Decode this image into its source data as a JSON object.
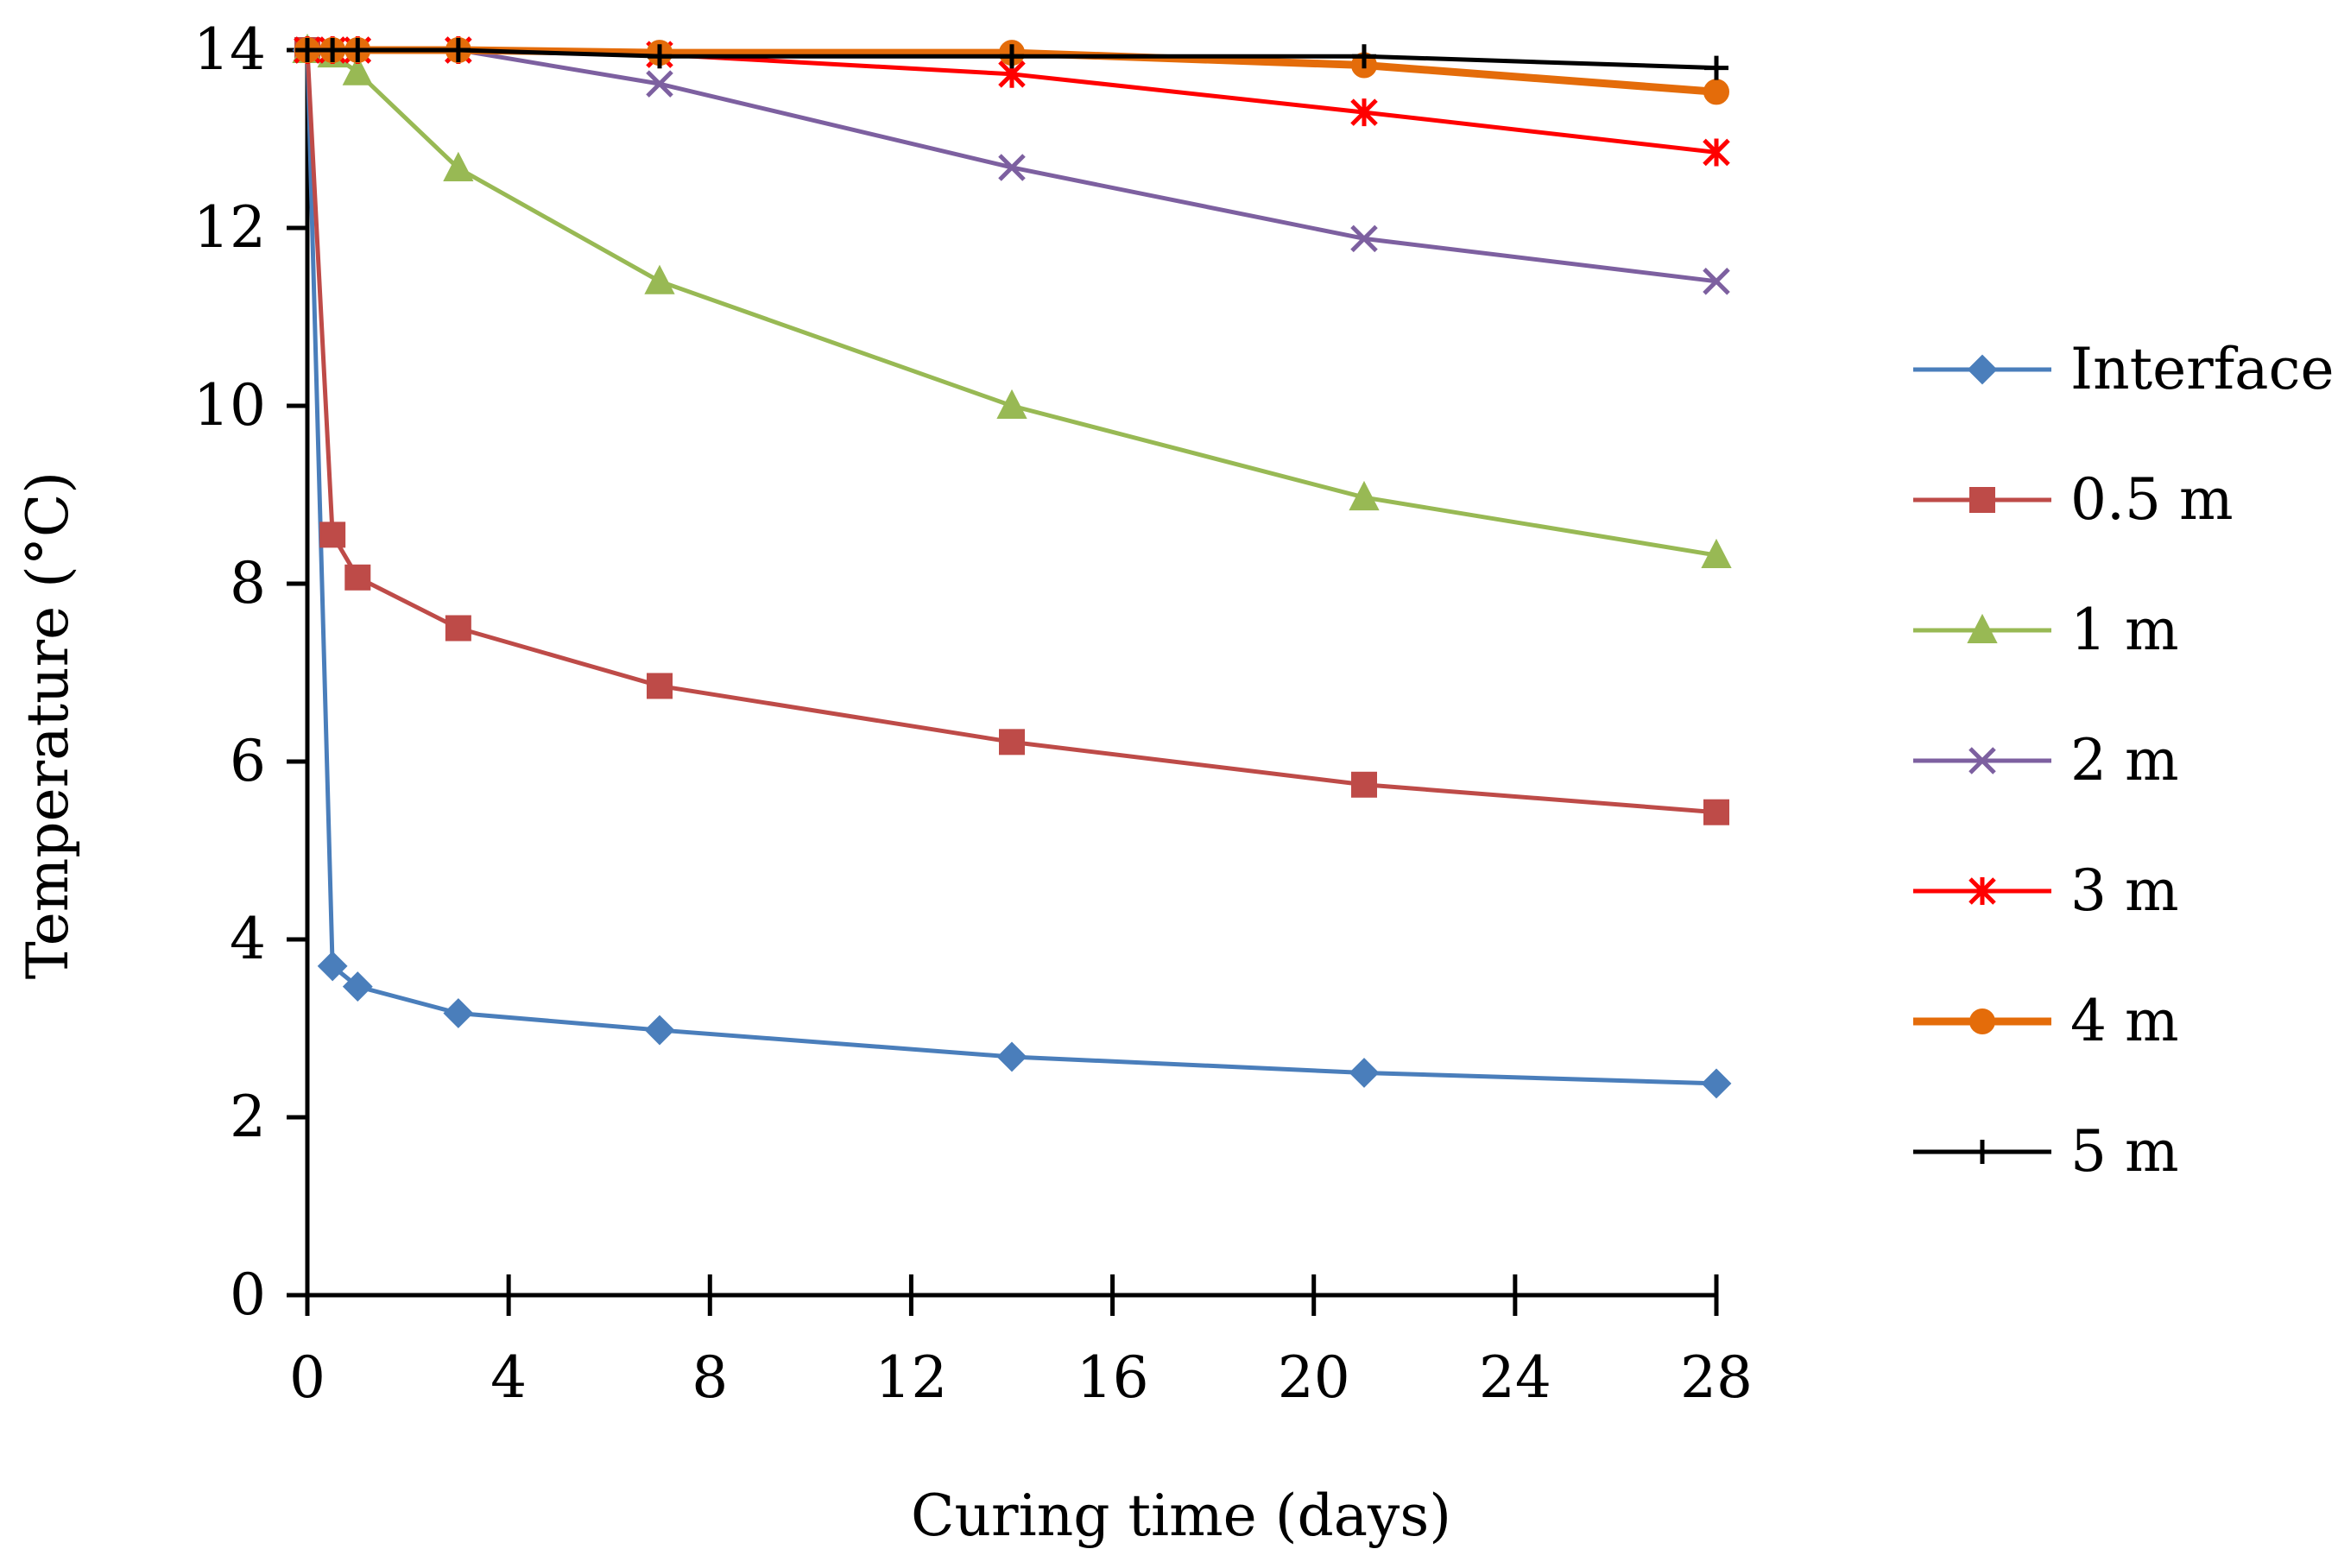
{
  "chart_data": {
    "type": "line",
    "title": "",
    "xlabel": "Curing time (days)",
    "ylabel": "Temperature (°C)",
    "xlim": [
      0,
      28
    ],
    "ylim": [
      0,
      14
    ],
    "x_ticks": [
      0,
      4,
      8,
      12,
      16,
      20,
      24,
      28
    ],
    "y_ticks": [
      0,
      2,
      4,
      6,
      8,
      10,
      12,
      14
    ],
    "x_tick_labels": [
      "0",
      "4",
      "8",
      "12",
      "16",
      "20",
      "24",
      "28"
    ],
    "y_tick_labels": [
      "0",
      "2",
      "4",
      "6",
      "8",
      "10",
      "12",
      "14"
    ],
    "grid": false,
    "legend_position": "right",
    "series": [
      {
        "name": "Interface",
        "color": "#4a7ebb",
        "marker": "diamond",
        "points": [
          [
            0,
            14
          ],
          [
            0.5,
            3.7
          ],
          [
            1,
            3.47
          ],
          [
            3,
            3.17
          ],
          [
            7,
            2.98
          ],
          [
            14,
            2.68
          ],
          [
            21,
            2.5
          ],
          [
            28,
            2.38
          ]
        ]
      },
      {
        "name": "0.5 m",
        "color": "#be4b48",
        "marker": "square",
        "points": [
          [
            0,
            14
          ],
          [
            0.5,
            8.55
          ],
          [
            1,
            8.07
          ],
          [
            3,
            7.5
          ],
          [
            7,
            6.85
          ],
          [
            14,
            6.22
          ],
          [
            21,
            5.74
          ],
          [
            28,
            5.43
          ]
        ]
      },
      {
        "name": "1 m",
        "color": "#98b954",
        "marker": "triangle",
        "points": [
          [
            0,
            14
          ],
          [
            0.5,
            13.95
          ],
          [
            1,
            13.75
          ],
          [
            3,
            12.67
          ],
          [
            7,
            11.4
          ],
          [
            14,
            10.0
          ],
          [
            21,
            8.97
          ],
          [
            28,
            8.32
          ]
        ]
      },
      {
        "name": "2 m",
        "color": "#7d60a0",
        "marker": "x",
        "points": [
          [
            0,
            14
          ],
          [
            0.5,
            14
          ],
          [
            1,
            14
          ],
          [
            3,
            14
          ],
          [
            7,
            13.62
          ],
          [
            14,
            12.68
          ],
          [
            21,
            11.88
          ],
          [
            28,
            11.4
          ]
        ]
      },
      {
        "name": "3 m",
        "color": "#ff0000",
        "marker": "asterisk",
        "points": [
          [
            0,
            14
          ],
          [
            0.5,
            14
          ],
          [
            1,
            14
          ],
          [
            3,
            14
          ],
          [
            7,
            13.95
          ],
          [
            14,
            13.73
          ],
          [
            21,
            13.3
          ],
          [
            28,
            12.85
          ]
        ]
      },
      {
        "name": "4 m",
        "color": "#e46c0a",
        "marker": "circle",
        "points": [
          [
            0,
            14
          ],
          [
            0.5,
            14
          ],
          [
            1,
            14
          ],
          [
            3,
            14
          ],
          [
            7,
            13.97
          ],
          [
            14,
            13.97
          ],
          [
            21,
            13.83
          ],
          [
            28,
            13.53
          ]
        ]
      },
      {
        "name": "5 m",
        "color": "#000000",
        "marker": "plus",
        "points": [
          [
            0,
            14
          ],
          [
            0.5,
            14
          ],
          [
            1,
            14
          ],
          [
            3,
            14
          ],
          [
            7,
            13.93
          ],
          [
            14,
            13.93
          ],
          [
            21,
            13.93
          ],
          [
            28,
            13.8
          ]
        ]
      }
    ]
  }
}
